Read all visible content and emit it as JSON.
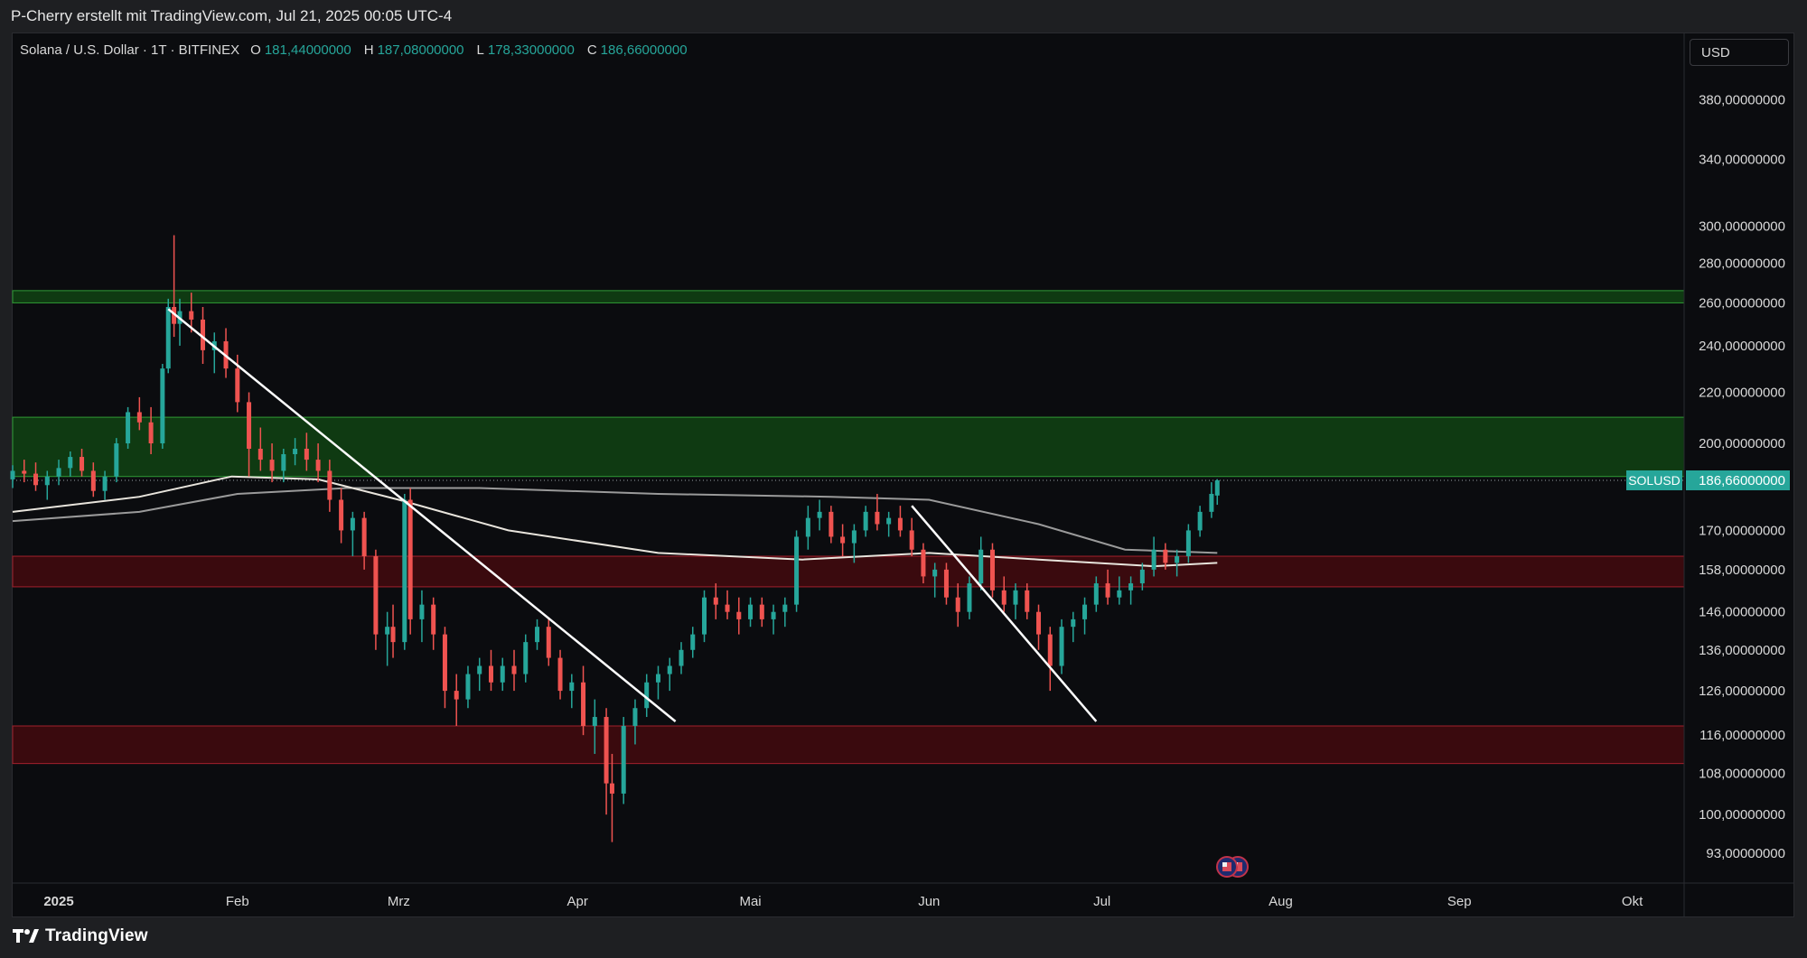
{
  "header": {
    "attribution": "P-Cherry erstellt mit TradingView.com, Jul 21, 2025 00:05 UTC-4"
  },
  "legend": {
    "symbol": "Solana / U.S. Dollar · 1T · BITFINEX",
    "ohlc": [
      {
        "key": "O",
        "value": "181,44000000"
      },
      {
        "key": "H",
        "value": "187,08000000"
      },
      {
        "key": "L",
        "value": "178,33000000"
      },
      {
        "key": "C",
        "value": "186,66000000"
      }
    ]
  },
  "currency": "USD",
  "footer": {
    "brand": "TradingView"
  },
  "colors": {
    "up": "#26a69a",
    "down": "#ef5350",
    "green_zone": "#0f3a12",
    "red_zone": "#3a0a0e",
    "price_label": "#26a69a"
  },
  "chart_data": {
    "type": "candlestick",
    "scale": "log",
    "ylim": [
      88,
      430
    ],
    "xlim": [
      "2024-12-24",
      "2025-10-10"
    ],
    "x_ticks": [
      {
        "label": "2025",
        "date": "2025-01-01"
      },
      {
        "label": "Feb",
        "date": "2025-02-01"
      },
      {
        "label": "Mrz",
        "date": "2025-03-01"
      },
      {
        "label": "Apr",
        "date": "2025-04-01"
      },
      {
        "label": "Mai",
        "date": "2025-05-01"
      },
      {
        "label": "Jun",
        "date": "2025-06-01"
      },
      {
        "label": "Jul",
        "date": "2025-07-01"
      },
      {
        "label": "Aug",
        "date": "2025-08-01"
      },
      {
        "label": "Sep",
        "date": "2025-09-01"
      },
      {
        "label": "Okt",
        "date": "2025-10-01"
      }
    ],
    "y_ticks": [
      {
        "label": "380,00000000",
        "value": 380
      },
      {
        "label": "340,00000000",
        "value": 340
      },
      {
        "label": "300,00000000",
        "value": 300
      },
      {
        "label": "280,00000000",
        "value": 280
      },
      {
        "label": "260,00000000",
        "value": 260
      },
      {
        "label": "240,00000000",
        "value": 240
      },
      {
        "label": "220,00000000",
        "value": 220
      },
      {
        "label": "200,00000000",
        "value": 200
      },
      {
        "label": "170,00000000",
        "value": 170
      },
      {
        "label": "158,00000000",
        "value": 158
      },
      {
        "label": "146,00000000",
        "value": 146
      },
      {
        "label": "136,00000000",
        "value": 136
      },
      {
        "label": "126,00000000",
        "value": 126
      },
      {
        "label": "116,00000000",
        "value": 116
      },
      {
        "label": "108,00000000",
        "value": 108
      },
      {
        "label": "100,00000000",
        "value": 100
      },
      {
        "label": "93,00000000",
        "value": 93
      }
    ],
    "last_price": {
      "symbol": "SOLUSD",
      "label": "186,66000000",
      "value": 186.66
    },
    "zones": [
      {
        "name": "green-resistance-band",
        "low": 260,
        "high": 266,
        "color": "green"
      },
      {
        "name": "green-supply-zone",
        "low": 188,
        "high": 210,
        "color": "green"
      },
      {
        "name": "red-zone-mid",
        "low": 153,
        "high": 162,
        "color": "red"
      },
      {
        "name": "red-zone-low",
        "low": 110,
        "high": 118,
        "color": "red"
      }
    ],
    "trendlines": [
      {
        "name": "trendline-1",
        "from": {
          "date": "2025-01-20",
          "value": 257
        },
        "to": {
          "date": "2025-04-18",
          "value": 119
        }
      },
      {
        "name": "trendline-2",
        "from": {
          "date": "2025-05-29",
          "value": 178
        },
        "to": {
          "date": "2025-06-30",
          "value": 119
        }
      }
    ],
    "moving_averages": [
      {
        "name": "ma-gray",
        "color": "#9a9a9a",
        "points": [
          [
            "2024-12-24",
            173
          ],
          [
            "2025-01-15",
            176
          ],
          [
            "2025-02-01",
            182
          ],
          [
            "2025-02-20",
            184
          ],
          [
            "2025-03-15",
            184
          ],
          [
            "2025-04-15",
            182
          ],
          [
            "2025-05-15",
            181
          ],
          [
            "2025-06-01",
            180
          ],
          [
            "2025-06-20",
            172
          ],
          [
            "2025-07-05",
            164
          ],
          [
            "2025-07-21",
            163
          ]
        ]
      },
      {
        "name": "ma-white",
        "color": "#e8e4dc",
        "points": [
          [
            "2024-12-24",
            176
          ],
          [
            "2025-01-15",
            181
          ],
          [
            "2025-01-31",
            188
          ],
          [
            "2025-02-15",
            187
          ],
          [
            "2025-03-01",
            180
          ],
          [
            "2025-03-20",
            170
          ],
          [
            "2025-04-15",
            163
          ],
          [
            "2025-05-10",
            161
          ],
          [
            "2025-06-01",
            163
          ],
          [
            "2025-06-20",
            161
          ],
          [
            "2025-07-10",
            159
          ],
          [
            "2025-07-21",
            160
          ]
        ]
      }
    ],
    "candles": [
      [
        "2024-12-24",
        187,
        192,
        184,
        190
      ],
      [
        "2024-12-26",
        190,
        194,
        186,
        189
      ],
      [
        "2024-12-28",
        189,
        193,
        183,
        185
      ],
      [
        "2024-12-30",
        185,
        190,
        180,
        188
      ],
      [
        "2025-01-01",
        188,
        194,
        185,
        191
      ],
      [
        "2025-01-03",
        191,
        197,
        188,
        195
      ],
      [
        "2025-01-05",
        195,
        198,
        188,
        190
      ],
      [
        "2025-01-07",
        190,
        193,
        181,
        183
      ],
      [
        "2025-01-09",
        183,
        190,
        180,
        188
      ],
      [
        "2025-01-11",
        188,
        202,
        186,
        200
      ],
      [
        "2025-01-13",
        200,
        214,
        198,
        212
      ],
      [
        "2025-01-15",
        212,
        218,
        205,
        208
      ],
      [
        "2025-01-17",
        208,
        214,
        196,
        200
      ],
      [
        "2025-01-19",
        200,
        232,
        198,
        230
      ],
      [
        "2025-01-20",
        230,
        262,
        228,
        258
      ],
      [
        "2025-01-21",
        258,
        295,
        244,
        250
      ],
      [
        "2025-01-22",
        250,
        262,
        240,
        256
      ],
      [
        "2025-01-24",
        256,
        265,
        246,
        252
      ],
      [
        "2025-01-26",
        252,
        258,
        232,
        238
      ],
      [
        "2025-01-28",
        238,
        246,
        228,
        242
      ],
      [
        "2025-01-30",
        242,
        248,
        226,
        230
      ],
      [
        "2025-02-01",
        230,
        236,
        212,
        216
      ],
      [
        "2025-02-03",
        216,
        220,
        188,
        198
      ],
      [
        "2025-02-05",
        198,
        206,
        190,
        194
      ],
      [
        "2025-02-07",
        194,
        200,
        186,
        190
      ],
      [
        "2025-02-09",
        190,
        198,
        186,
        196
      ],
      [
        "2025-02-11",
        196,
        202,
        192,
        198
      ],
      [
        "2025-02-13",
        198,
        204,
        190,
        194
      ],
      [
        "2025-02-15",
        194,
        200,
        186,
        190
      ],
      [
        "2025-02-17",
        190,
        194,
        176,
        180
      ],
      [
        "2025-02-19",
        180,
        184,
        166,
        170
      ],
      [
        "2025-02-21",
        170,
        176,
        162,
        174
      ],
      [
        "2025-02-23",
        174,
        176,
        158,
        162
      ],
      [
        "2025-02-25",
        162,
        164,
        136,
        140
      ],
      [
        "2025-02-27",
        140,
        146,
        132,
        142
      ],
      [
        "2025-02-28",
        142,
        148,
        134,
        138
      ],
      [
        "2025-03-02",
        138,
        182,
        136,
        180
      ],
      [
        "2025-03-03",
        180,
        184,
        140,
        144
      ],
      [
        "2025-03-05",
        144,
        152,
        138,
        148
      ],
      [
        "2025-03-07",
        148,
        150,
        136,
        140
      ],
      [
        "2025-03-09",
        140,
        142,
        122,
        126
      ],
      [
        "2025-03-11",
        126,
        130,
        118,
        124
      ],
      [
        "2025-03-13",
        124,
        132,
        122,
        130
      ],
      [
        "2025-03-15",
        130,
        134,
        126,
        132
      ],
      [
        "2025-03-17",
        132,
        136,
        126,
        128
      ],
      [
        "2025-03-19",
        128,
        134,
        126,
        132
      ],
      [
        "2025-03-21",
        132,
        136,
        126,
        130
      ],
      [
        "2025-03-23",
        130,
        140,
        128,
        138
      ],
      [
        "2025-03-25",
        138,
        144,
        136,
        142
      ],
      [
        "2025-03-27",
        142,
        144,
        132,
        134
      ],
      [
        "2025-03-29",
        134,
        136,
        124,
        126
      ],
      [
        "2025-03-31",
        126,
        130,
        122,
        128
      ],
      [
        "2025-04-02",
        128,
        132,
        116,
        118
      ],
      [
        "2025-04-04",
        118,
        124,
        112,
        120
      ],
      [
        "2025-04-06",
        120,
        122,
        100,
        106
      ],
      [
        "2025-04-07",
        106,
        112,
        95,
        104
      ],
      [
        "2025-04-09",
        104,
        120,
        102,
        118
      ],
      [
        "2025-04-11",
        118,
        124,
        114,
        122
      ],
      [
        "2025-04-13",
        122,
        130,
        120,
        128
      ],
      [
        "2025-04-15",
        128,
        132,
        124,
        130
      ],
      [
        "2025-04-17",
        130,
        134,
        126,
        132
      ],
      [
        "2025-04-19",
        132,
        138,
        130,
        136
      ],
      [
        "2025-04-21",
        136,
        142,
        134,
        140
      ],
      [
        "2025-04-23",
        140,
        152,
        138,
        150
      ],
      [
        "2025-04-25",
        150,
        154,
        144,
        148
      ],
      [
        "2025-04-27",
        148,
        152,
        144,
        146
      ],
      [
        "2025-04-29",
        146,
        150,
        140,
        144
      ],
      [
        "2025-05-01",
        144,
        150,
        142,
        148
      ],
      [
        "2025-05-03",
        148,
        150,
        142,
        144
      ],
      [
        "2025-05-05",
        144,
        148,
        140,
        146
      ],
      [
        "2025-05-07",
        146,
        150,
        142,
        148
      ],
      [
        "2025-05-09",
        148,
        170,
        146,
        168
      ],
      [
        "2025-05-11",
        168,
        178,
        164,
        174
      ],
      [
        "2025-05-13",
        174,
        180,
        170,
        176
      ],
      [
        "2025-05-15",
        176,
        178,
        166,
        168
      ],
      [
        "2025-05-17",
        168,
        172,
        162,
        166
      ],
      [
        "2025-05-19",
        166,
        172,
        160,
        170
      ],
      [
        "2025-05-21",
        170,
        178,
        168,
        176
      ],
      [
        "2025-05-23",
        176,
        182,
        170,
        172
      ],
      [
        "2025-05-25",
        172,
        176,
        168,
        174
      ],
      [
        "2025-05-27",
        174,
        178,
        168,
        170
      ],
      [
        "2025-05-29",
        170,
        174,
        162,
        164
      ],
      [
        "2025-05-31",
        164,
        166,
        154,
        156
      ],
      [
        "2025-06-02",
        156,
        160,
        150,
        158
      ],
      [
        "2025-06-04",
        158,
        160,
        148,
        150
      ],
      [
        "2025-06-06",
        150,
        154,
        142,
        146
      ],
      [
        "2025-06-08",
        146,
        156,
        144,
        154
      ],
      [
        "2025-06-10",
        154,
        168,
        152,
        164
      ],
      [
        "2025-06-12",
        164,
        166,
        150,
        152
      ],
      [
        "2025-06-14",
        152,
        156,
        146,
        148
      ],
      [
        "2025-06-16",
        148,
        154,
        144,
        152
      ],
      [
        "2025-06-18",
        152,
        154,
        144,
        146
      ],
      [
        "2025-06-20",
        146,
        148,
        136,
        140
      ],
      [
        "2025-06-22",
        140,
        142,
        126,
        132
      ],
      [
        "2025-06-24",
        132,
        144,
        130,
        142
      ],
      [
        "2025-06-26",
        142,
        146,
        138,
        144
      ],
      [
        "2025-06-28",
        144,
        150,
        140,
        148
      ],
      [
        "2025-06-30",
        148,
        156,
        146,
        154
      ],
      [
        "2025-07-02",
        154,
        158,
        148,
        150
      ],
      [
        "2025-07-04",
        150,
        156,
        148,
        152
      ],
      [
        "2025-07-06",
        152,
        156,
        148,
        154
      ],
      [
        "2025-07-08",
        154,
        160,
        152,
        158
      ],
      [
        "2025-07-10",
        158,
        168,
        156,
        164
      ],
      [
        "2025-07-12",
        164,
        166,
        158,
        160
      ],
      [
        "2025-07-14",
        160,
        164,
        156,
        162
      ],
      [
        "2025-07-16",
        162,
        172,
        160,
        170
      ],
      [
        "2025-07-18",
        170,
        178,
        168,
        176
      ],
      [
        "2025-07-20",
        176,
        186,
        174,
        182
      ],
      [
        "2025-07-21",
        181.44,
        187.08,
        178.33,
        186.66
      ]
    ]
  }
}
